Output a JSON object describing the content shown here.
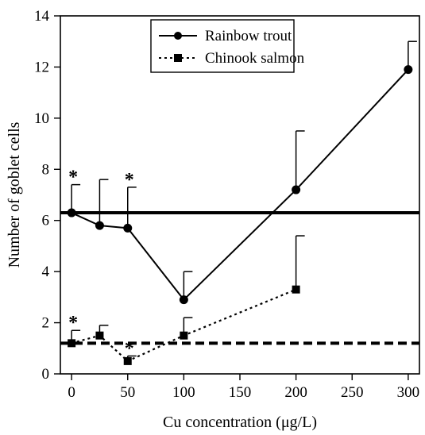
{
  "chart_data": {
    "type": "line",
    "xlabel": "Cu concentration (μg/L)",
    "ylabel": "Number of goblet cells",
    "xlim": [
      -10,
      310
    ],
    "ylim": [
      0,
      14
    ],
    "x_ticks": [
      0,
      50,
      100,
      150,
      200,
      250,
      300
    ],
    "y_ticks": [
      0,
      2,
      4,
      6,
      8,
      10,
      12,
      14
    ],
    "x_tick_labels": [
      "0",
      "50",
      "100",
      "150",
      "200",
      "250",
      "300"
    ],
    "y_tick_labels": [
      "0",
      "2",
      "4",
      "6",
      "8",
      "10",
      "12",
      "14"
    ],
    "legend_position": "top-center",
    "grid": false,
    "series": [
      {
        "name": "Rainbow trout",
        "line_style": "solid",
        "marker": "circle",
        "color": "#000000",
        "x": [
          0,
          25,
          50,
          100,
          200,
          300
        ],
        "y": [
          6.3,
          5.8,
          5.7,
          2.9,
          7.2,
          11.9
        ],
        "error_upper": [
          7.4,
          7.6,
          7.3,
          4.0,
          9.5,
          13.0
        ],
        "significant": [
          true,
          false,
          true,
          false,
          false,
          false
        ],
        "control_level": 6.3,
        "control_line_style": "thick-solid"
      },
      {
        "name": "Chinook salmon",
        "line_style": "dotted",
        "marker": "square",
        "color": "#000000",
        "x": [
          0,
          25,
          50,
          100,
          200
        ],
        "y": [
          1.2,
          1.5,
          0.5,
          1.5,
          3.3
        ],
        "error_upper": [
          1.7,
          1.9,
          0.7,
          2.2,
          5.4
        ],
        "significant": [
          true,
          false,
          true,
          false,
          false
        ],
        "control_level": 1.2,
        "control_line_style": "thick-dashed"
      }
    ],
    "significance_marker": "*"
  }
}
